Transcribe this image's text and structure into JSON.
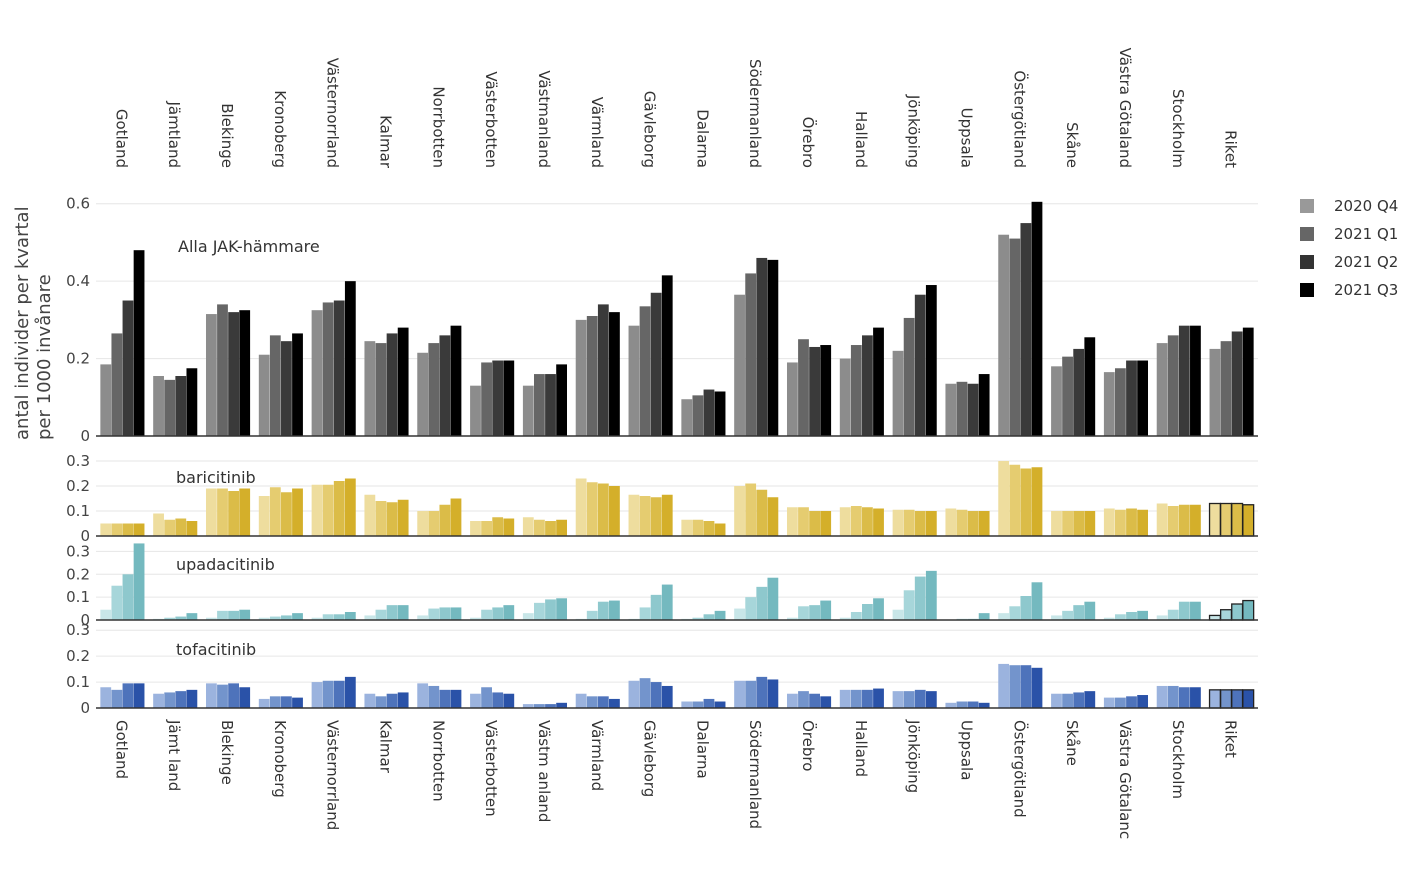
{
  "chart_data": {
    "type": "bar",
    "ylabel": "antal individer per kvartal per 1000 invånare",
    "regions": [
      "Gotland",
      "Jämtland",
      "Blekinge",
      "Kronoberg",
      "Västernorrland",
      "Kalmar",
      "Norrbotten",
      "Västerbotten",
      "Västmanland",
      "Värmland",
      "Gävleborg",
      "Dalarna",
      "Södermanland",
      "Örebro",
      "Halland",
      "Jönköping",
      "Uppsala",
      "Östergötland",
      "Skåne",
      "Västra Götaland",
      "Stockholm",
      "Riket"
    ],
    "bottom_tick_labels": [
      "Gotland",
      "Jämt land",
      "Blekinge",
      "Kronoberg",
      "Västernorrland",
      "Kalmar",
      "Norrbotten",
      "Västerbotten",
      "Västm anland",
      "Värmland",
      "Gävleborg",
      "Dalarna",
      "Södermanland",
      "Örebro",
      "Halland",
      "Jönköping",
      "Uppsala",
      "Östergötland",
      "Skåne",
      "Västra Götalanc",
      "Stockholm",
      "Riket"
    ],
    "quarters": [
      "2020 Q4",
      "2021 Q1",
      "2021 Q2",
      "2021 Q3"
    ],
    "legend_colors": [
      "#999999",
      "#666666",
      "#333333",
      "#000000"
    ],
    "legend_placement": "right",
    "panels": [
      {
        "name": "Alla JAK-hämmare",
        "colors": [
          "#8c8c8c",
          "#666666",
          "#3a3a3a",
          "#000000"
        ],
        "ylim": [
          0,
          0.62
        ],
        "yticks": [
          0,
          0.2,
          0.4,
          0.6
        ],
        "ytick_labels": [
          "0",
          "0.2",
          "0.4",
          "0.6"
        ],
        "values": [
          [
            0.185,
            0.265,
            0.35,
            0.48
          ],
          [
            0.155,
            0.145,
            0.155,
            0.175
          ],
          [
            0.315,
            0.34,
            0.32,
            0.325
          ],
          [
            0.21,
            0.26,
            0.245,
            0.265
          ],
          [
            0.325,
            0.345,
            0.35,
            0.4
          ],
          [
            0.245,
            0.24,
            0.265,
            0.28
          ],
          [
            0.215,
            0.24,
            0.26,
            0.285
          ],
          [
            0.13,
            0.19,
            0.195,
            0.195
          ],
          [
            0.13,
            0.16,
            0.16,
            0.185
          ],
          [
            0.3,
            0.31,
            0.34,
            0.32
          ],
          [
            0.285,
            0.335,
            0.37,
            0.415
          ],
          [
            0.095,
            0.105,
            0.12,
            0.115
          ],
          [
            0.365,
            0.42,
            0.46,
            0.455
          ],
          [
            0.19,
            0.25,
            0.23,
            0.235
          ],
          [
            0.2,
            0.235,
            0.26,
            0.28
          ],
          [
            0.22,
            0.305,
            0.365,
            0.39
          ],
          [
            0.135,
            0.14,
            0.135,
            0.16
          ],
          [
            0.52,
            0.51,
            0.55,
            0.605
          ],
          [
            0.18,
            0.205,
            0.225,
            0.255
          ],
          [
            0.165,
            0.175,
            0.195,
            0.195
          ],
          [
            0.24,
            0.26,
            0.285,
            0.285
          ],
          [
            0.225,
            0.245,
            0.27,
            0.28
          ]
        ]
      },
      {
        "name": "baricitinib",
        "colors": [
          "#eedd9e",
          "#e5cc70",
          "#dbbc48",
          "#d4af2a"
        ],
        "ylim": [
          0,
          0.32
        ],
        "yticks": [
          0,
          0.1,
          0.2,
          0.3
        ],
        "ytick_labels": [
          "0",
          "0.1",
          "0.2",
          "0.3"
        ],
        "values": [
          [
            0.05,
            0.05,
            0.05,
            0.05
          ],
          [
            0.09,
            0.065,
            0.07,
            0.06
          ],
          [
            0.19,
            0.19,
            0.18,
            0.19
          ],
          [
            0.16,
            0.195,
            0.175,
            0.19
          ],
          [
            0.205,
            0.205,
            0.22,
            0.23
          ],
          [
            0.165,
            0.14,
            0.135,
            0.145
          ],
          [
            0.1,
            0.1,
            0.125,
            0.15
          ],
          [
            0.06,
            0.06,
            0.075,
            0.07
          ],
          [
            0.075,
            0.065,
            0.06,
            0.065
          ],
          [
            0.23,
            0.215,
            0.21,
            0.2
          ],
          [
            0.165,
            0.16,
            0.155,
            0.165
          ],
          [
            0.065,
            0.065,
            0.06,
            0.05
          ],
          [
            0.2,
            0.21,
            0.185,
            0.155
          ],
          [
            0.115,
            0.115,
            0.1,
            0.1
          ],
          [
            0.115,
            0.12,
            0.115,
            0.11
          ],
          [
            0.105,
            0.105,
            0.1,
            0.1
          ],
          [
            0.11,
            0.105,
            0.1,
            0.1
          ],
          [
            0.3,
            0.285,
            0.27,
            0.275
          ],
          [
            0.1,
            0.1,
            0.1,
            0.1
          ],
          [
            0.11,
            0.105,
            0.11,
            0.105
          ],
          [
            0.13,
            0.12,
            0.125,
            0.125
          ],
          [
            0.13,
            0.13,
            0.13,
            0.125
          ]
        ]
      },
      {
        "name": "upadacitinib",
        "colors": [
          "#c8e6e8",
          "#a7d6da",
          "#8ec8cd",
          "#74b9bf"
        ],
        "ylim": [
          0,
          0.35
        ],
        "yticks": [
          0,
          0.1,
          0.2,
          0.3
        ],
        "ytick_labels": [
          "0",
          "0.1",
          "0.2",
          "0.3"
        ],
        "values": [
          [
            0.045,
            0.15,
            0.2,
            0.335
          ],
          [
            0.005,
            0.01,
            0.015,
            0.03
          ],
          [
            0.01,
            0.04,
            0.04,
            0.045
          ],
          [
            0.01,
            0.015,
            0.02,
            0.03
          ],
          [
            0.01,
            0.025,
            0.025,
            0.035
          ],
          [
            0.02,
            0.045,
            0.065,
            0.065
          ],
          [
            0.02,
            0.05,
            0.055,
            0.055
          ],
          [
            0.01,
            0.045,
            0.055,
            0.065
          ],
          [
            0.03,
            0.075,
            0.09,
            0.095
          ],
          [
            0.005,
            0.04,
            0.08,
            0.085
          ],
          [
            0.005,
            0.055,
            0.11,
            0.155
          ],
          [
            0.005,
            0.01,
            0.025,
            0.04
          ],
          [
            0.05,
            0.1,
            0.145,
            0.185
          ],
          [
            0.01,
            0.06,
            0.065,
            0.085
          ],
          [
            0.01,
            0.035,
            0.07,
            0.095
          ],
          [
            0.045,
            0.13,
            0.19,
            0.215
          ],
          [
            0.0,
            0.005,
            0.005,
            0.03
          ],
          [
            0.03,
            0.06,
            0.105,
            0.165
          ],
          [
            0.02,
            0.04,
            0.065,
            0.08
          ],
          [
            0.01,
            0.025,
            0.035,
            0.04
          ],
          [
            0.02,
            0.045,
            0.08,
            0.08
          ],
          [
            0.02,
            0.045,
            0.07,
            0.085
          ]
        ]
      },
      {
        "name": "tofacitinib",
        "colors": [
          "#9bb3de",
          "#7394cc",
          "#4e73bb",
          "#2a52a8"
        ],
        "ylim": [
          0,
          0.32
        ],
        "yticks": [
          0,
          0.1,
          0.2,
          0.3
        ],
        "ytick_labels": [
          "0",
          "0.1",
          "0.2",
          "0.3"
        ],
        "values": [
          [
            0.08,
            0.07,
            0.095,
            0.095
          ],
          [
            0.055,
            0.06,
            0.065,
            0.07
          ],
          [
            0.095,
            0.09,
            0.095,
            0.08
          ],
          [
            0.035,
            0.045,
            0.045,
            0.04
          ],
          [
            0.1,
            0.105,
            0.105,
            0.12
          ],
          [
            0.055,
            0.045,
            0.055,
            0.06
          ],
          [
            0.095,
            0.085,
            0.07,
            0.07
          ],
          [
            0.055,
            0.08,
            0.06,
            0.055
          ],
          [
            0.015,
            0.015,
            0.015,
            0.02
          ],
          [
            0.055,
            0.045,
            0.045,
            0.035
          ],
          [
            0.105,
            0.115,
            0.1,
            0.085
          ],
          [
            0.025,
            0.025,
            0.035,
            0.025
          ],
          [
            0.105,
            0.105,
            0.12,
            0.11
          ],
          [
            0.055,
            0.065,
            0.055,
            0.045
          ],
          [
            0.07,
            0.07,
            0.07,
            0.075
          ],
          [
            0.065,
            0.065,
            0.07,
            0.065
          ],
          [
            0.02,
            0.025,
            0.025,
            0.02
          ],
          [
            0.17,
            0.165,
            0.165,
            0.155
          ],
          [
            0.055,
            0.055,
            0.06,
            0.065
          ],
          [
            0.04,
            0.04,
            0.045,
            0.05
          ],
          [
            0.085,
            0.085,
            0.08,
            0.08
          ],
          [
            0.07,
            0.07,
            0.07,
            0.07
          ]
        ]
      }
    ]
  }
}
